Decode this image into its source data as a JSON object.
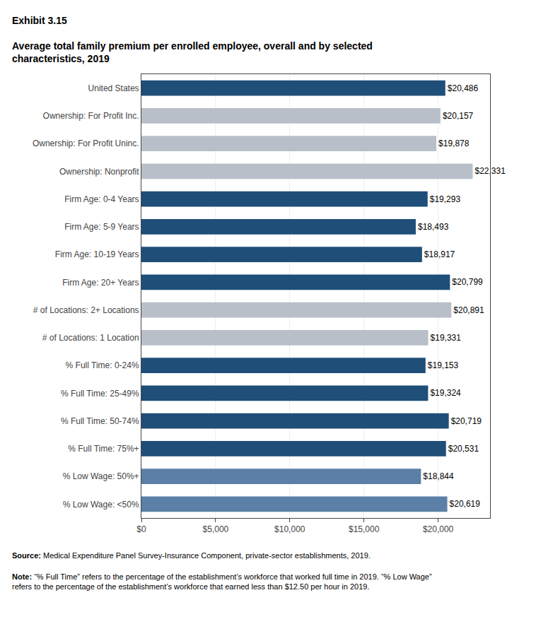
{
  "chart_data": {
    "type": "bar",
    "orientation": "horizontal",
    "title": "Exhibit 3.15",
    "subtitle": "Average total family premium per enrolled employee, overall and by selected\ncharacteristics, 2019",
    "annotations": [
      "Source: Medical Expenditure Panel Survey-Insurance Component, private-sector establishments, 2019.",
      "Note: “% Full Time” refers to the percentage of the establishment’s workforce that worked full time in 2019. “% Low Wage”\nrefers to the percentage of the establishment’s workforce that earned less than $12.50 per hour in 2019."
    ],
    "categories": [
      "United States",
      "Ownership: For Profit Inc.",
      "Ownership: For Profit Uninc.",
      "Ownership: Nonprofit",
      "Firm Age: 0-4 Years",
      "Firm Age: 5-9 Years",
      "Firm Age: 10-19 Years",
      "Firm Age: 20+ Years",
      "# of Locations: 2+ Locations",
      "# of Locations: 1 Location",
      "% Full Time: 0-24%",
      "% Full Time: 25-49%",
      "% Full Time: 50-74%",
      "% Full Time: 75%+",
      "% Low Wage: 50%+",
      "% Low Wage: <50%"
    ],
    "values": [
      20486,
      20157,
      19878,
      22331,
      19293,
      18493,
      18917,
      20799,
      20891,
      19331,
      19153,
      19324,
      20719,
      20531,
      18844,
      20619
    ],
    "value_labels": [
      "$20,486",
      "$20,157",
      "$19,878",
      "$22,331",
      "$19,293",
      "$18,493",
      "$18,917",
      "$20,799",
      "$20,891",
      "$19,331",
      "$19,153",
      "$19,324",
      "$20,719",
      "$20,531",
      "$18,844",
      "$20,619"
    ],
    "data_labels": true,
    "colors": [
      "#1F4E79",
      "#B8BFC8",
      "#B8BFC8",
      "#B8BFC8",
      "#1F4E79",
      "#1F4E79",
      "#1F4E79",
      "#1F4E79",
      "#B8BFC8",
      "#B8BFC8",
      "#1F4E79",
      "#1F4E79",
      "#1F4E79",
      "#1F4E79",
      "#5B7FA6",
      "#5B7FA6"
    ],
    "xlim": [
      0,
      23500
    ],
    "xticks": [
      {
        "value": 0,
        "label": "$0"
      },
      {
        "value": 5000,
        "label": "$5,000"
      },
      {
        "value": 10000,
        "label": "$10,000"
      },
      {
        "value": 15000,
        "label": "$15,000"
      },
      {
        "value": 20000,
        "label": "$20,000"
      }
    ],
    "grid": true
  }
}
